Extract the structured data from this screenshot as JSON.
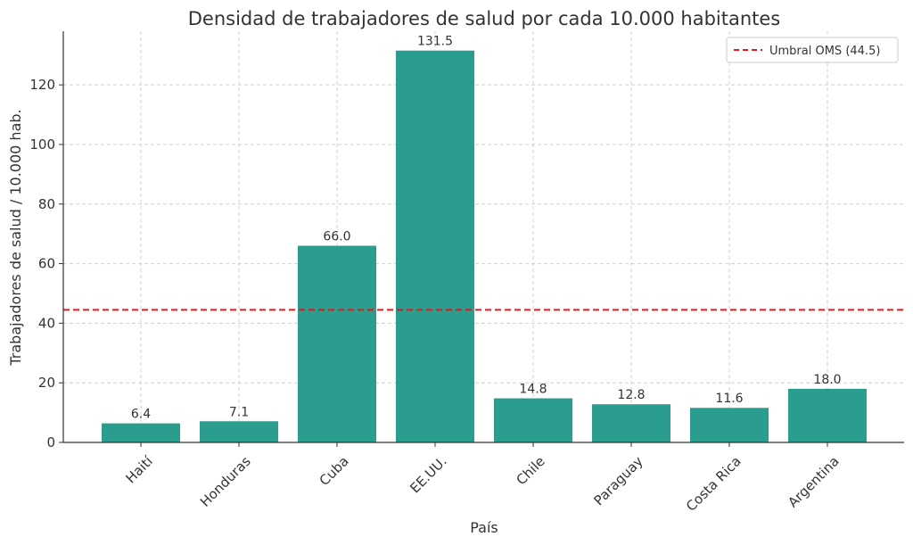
{
  "chart_data": {
    "type": "bar",
    "title": "Densidad de trabajadores de salud por cada 10.000 habitantes",
    "xlabel": "País",
    "ylabel": "Trabajadores de salud / 10.000 hab.",
    "categories": [
      "Haití",
      "Honduras",
      "Cuba",
      "EE.UU.",
      "Chile",
      "Paraguay",
      "Costa Rica",
      "Argentina"
    ],
    "values": [
      6.4,
      7.1,
      66.0,
      131.5,
      14.8,
      12.8,
      11.6,
      18.0
    ],
    "value_labels": [
      "6.4",
      "7.1",
      "66.0",
      "131.5",
      "14.8",
      "12.8",
      "11.6",
      "18.0"
    ],
    "ylim": [
      0,
      138
    ],
    "yticks": [
      0,
      20,
      40,
      60,
      80,
      100,
      120
    ],
    "grid": true,
    "reference_line": {
      "label": "Umbral OMS (44.5)",
      "value": 44.5,
      "color": "#e31a1c",
      "style": "dashed"
    },
    "legend_position": "top-right",
    "bar_color": "#2a9d8f"
  }
}
